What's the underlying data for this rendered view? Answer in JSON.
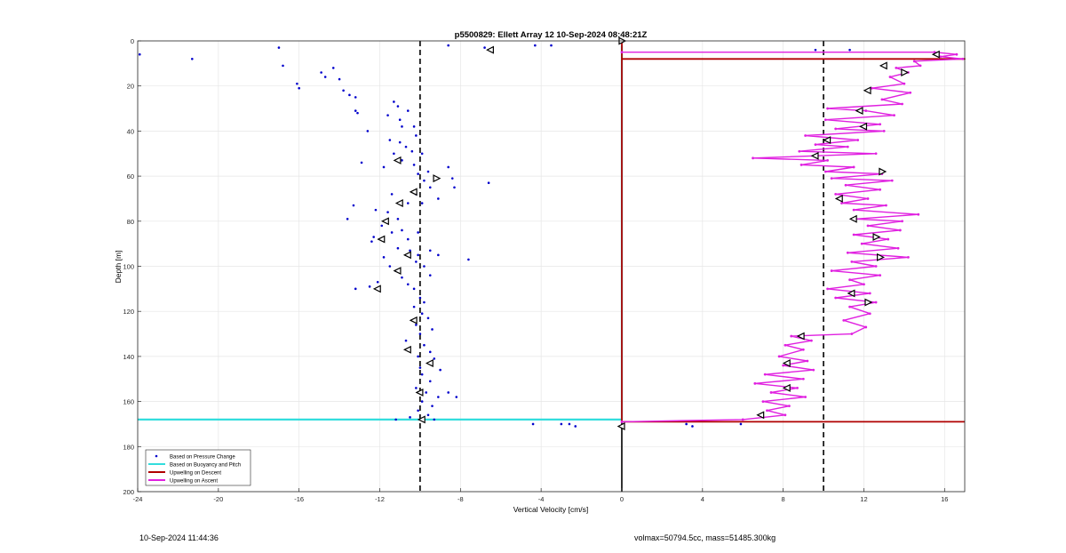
{
  "footer": {
    "timestamp": "10-Sep-2024 11:44:36",
    "params": "volmax=50794.5cc, mass=51485.300kg"
  },
  "colors": {
    "pressure": "#0000cc",
    "buoyancy": "#33dddd",
    "descent": "#b00000",
    "ascent": "#e020e0",
    "reference": "#000000"
  },
  "chart_data": {
    "type": "scatter",
    "title": "p5500829: Ellett Array 12 10-Sep-2024 08:48:21Z",
    "xlabel": "Vertical Velocity [cm/s]",
    "ylabel": "Depth [m]",
    "xlim": [
      -24,
      17
    ],
    "ylim": [
      0,
      200
    ],
    "y_reversed": true,
    "xticks": [
      -24,
      -20,
      -16,
      -12,
      -8,
      -4,
      0,
      4,
      8,
      12,
      16
    ],
    "yticks": [
      0,
      20,
      40,
      60,
      80,
      100,
      120,
      140,
      160,
      180,
      200
    ],
    "grid": true,
    "legend_position": "bottom-left",
    "reference_lines": [
      -10,
      10
    ],
    "series": [
      {
        "name": "Based on Pressure Change",
        "kind": "points",
        "points": [
          [
            -23.9,
            6
          ],
          [
            -21.3,
            8
          ],
          [
            -17.0,
            3
          ],
          [
            -16.8,
            11
          ],
          [
            -16.1,
            19
          ],
          [
            -16.0,
            21
          ],
          [
            -14.9,
            14
          ],
          [
            -14.7,
            16
          ],
          [
            -14.3,
            12
          ],
          [
            -14.0,
            17
          ],
          [
            -13.8,
            22
          ],
          [
            -13.5,
            24
          ],
          [
            -13.2,
            25
          ],
          [
            -13.2,
            31
          ],
          [
            -13.1,
            32
          ],
          [
            -11.6,
            33
          ],
          [
            -11.3,
            27
          ],
          [
            -11.1,
            29
          ],
          [
            -11.0,
            35
          ],
          [
            -10.9,
            38
          ],
          [
            -10.6,
            31
          ],
          [
            -10.3,
            38
          ],
          [
            -10.2,
            42
          ],
          [
            -12.6,
            40
          ],
          [
            -11.5,
            44
          ],
          [
            -11.0,
            45
          ],
          [
            -10.7,
            47
          ],
          [
            -11.3,
            50
          ],
          [
            -10.4,
            49
          ],
          [
            -9.9,
            50
          ],
          [
            -10.9,
            53
          ],
          [
            -10.3,
            55
          ],
          [
            -9.6,
            58
          ],
          [
            -11.8,
            56
          ],
          [
            -12.9,
            54
          ],
          [
            -10.1,
            59
          ],
          [
            -9.8,
            62
          ],
          [
            -9.5,
            65
          ],
          [
            -10.2,
            68
          ],
          [
            -11.4,
            68
          ],
          [
            -10.6,
            72
          ],
          [
            -9.9,
            72
          ],
          [
            -9.1,
            70
          ],
          [
            -8.4,
            61
          ],
          [
            -8.3,
            65
          ],
          [
            -6.6,
            63
          ],
          [
            -8.6,
            56
          ],
          [
            -12.2,
            75
          ],
          [
            -11.6,
            76
          ],
          [
            -11.1,
            79
          ],
          [
            -13.3,
            73
          ],
          [
            -13.6,
            79
          ],
          [
            -11.9,
            82
          ],
          [
            -11.4,
            85
          ],
          [
            -10.9,
            84
          ],
          [
            -10.6,
            88
          ],
          [
            -10.1,
            85
          ],
          [
            -12.3,
            87
          ],
          [
            -12.4,
            89
          ],
          [
            -11.1,
            92
          ],
          [
            -10.5,
            93
          ],
          [
            -10.1,
            95
          ],
          [
            -9.5,
            93
          ],
          [
            -9.1,
            95
          ],
          [
            -11.8,
            96
          ],
          [
            -11.5,
            100
          ],
          [
            -11.2,
            102
          ],
          [
            -10.9,
            105
          ],
          [
            -10.6,
            108
          ],
          [
            -10.3,
            110
          ],
          [
            -12.1,
            107
          ],
          [
            -12.5,
            109
          ],
          [
            -13.2,
            110
          ],
          [
            -10.2,
            98
          ],
          [
            -9.8,
            100
          ],
          [
            -9.5,
            104
          ],
          [
            -7.6,
            97
          ],
          [
            -10.0,
            114
          ],
          [
            -9.8,
            116
          ],
          [
            -10.3,
            118
          ],
          [
            -9.9,
            121
          ],
          [
            -9.6,
            123
          ],
          [
            -10.2,
            126
          ],
          [
            -10.0,
            130
          ],
          [
            -9.4,
            128
          ],
          [
            -10.7,
            133
          ],
          [
            -9.8,
            135
          ],
          [
            -9.5,
            138
          ],
          [
            -10.1,
            140
          ],
          [
            -9.3,
            141
          ],
          [
            -10.0,
            145
          ],
          [
            -9.0,
            146
          ],
          [
            -9.9,
            148
          ],
          [
            -9.5,
            151
          ],
          [
            -10.2,
            154
          ],
          [
            -9.7,
            156
          ],
          [
            -9.1,
            158
          ],
          [
            -9.9,
            160
          ],
          [
            -9.4,
            162
          ],
          [
            -8.6,
            156
          ],
          [
            -8.2,
            158
          ],
          [
            -10.1,
            164
          ],
          [
            -9.6,
            166
          ],
          [
            -9.3,
            168
          ],
          [
            -10.5,
            167
          ],
          [
            -11.2,
            168
          ],
          [
            -8.6,
            2
          ],
          [
            -6.8,
            3
          ],
          [
            -4.3,
            2
          ],
          [
            -3.5,
            2
          ],
          [
            -4.4,
            170
          ],
          [
            -3.0,
            170
          ],
          [
            -2.6,
            170
          ],
          [
            -2.3,
            171
          ],
          [
            9.6,
            4
          ],
          [
            11.3,
            4
          ],
          [
            3.2,
            170
          ],
          [
            3.5,
            171
          ],
          [
            5.9,
            170
          ]
        ]
      },
      {
        "name": "Based on Buoyancy and Pitch",
        "kind": "line",
        "points": [
          [
            0,
            2
          ],
          [
            0,
            168
          ],
          [
            -24,
            168
          ]
        ]
      },
      {
        "name": "Upwelling on Descent",
        "kind": "line",
        "points": [
          [
            0,
            0
          ],
          [
            0,
            5
          ],
          [
            0,
            8
          ],
          [
            17,
            8
          ],
          [
            0,
            8
          ],
          [
            0,
            169
          ],
          [
            17,
            169
          ]
        ]
      },
      {
        "name": "Upwelling on Ascent",
        "kind": "line",
        "points": [
          [
            0,
            5
          ],
          [
            15.5,
            5
          ],
          [
            16.6,
            6
          ],
          [
            15.8,
            7
          ],
          [
            16.9,
            8
          ],
          [
            14.5,
            9
          ],
          [
            14.8,
            11
          ],
          [
            13.6,
            12
          ],
          [
            14.2,
            14
          ],
          [
            13.3,
            16
          ],
          [
            14.0,
            19
          ],
          [
            12.4,
            21
          ],
          [
            14.3,
            23
          ],
          [
            12.9,
            26
          ],
          [
            13.9,
            28
          ],
          [
            10.2,
            30
          ],
          [
            12.1,
            31
          ],
          [
            13.5,
            33
          ],
          [
            10.1,
            35
          ],
          [
            12.8,
            37
          ],
          [
            10.6,
            39
          ],
          [
            13.0,
            40
          ],
          [
            9.1,
            42
          ],
          [
            11.7,
            44
          ],
          [
            9.6,
            46
          ],
          [
            11.2,
            47
          ],
          [
            8.8,
            49
          ],
          [
            12.6,
            50
          ],
          [
            6.5,
            52
          ],
          [
            10.2,
            53
          ],
          [
            8.9,
            55
          ],
          [
            11.5,
            56
          ],
          [
            10.1,
            58
          ],
          [
            12.9,
            59
          ],
          [
            10.4,
            61
          ],
          [
            13.4,
            62
          ],
          [
            11.1,
            64
          ],
          [
            12.8,
            66
          ],
          [
            10.6,
            68
          ],
          [
            12.2,
            70
          ],
          [
            10.9,
            72
          ],
          [
            13.1,
            73
          ],
          [
            11.5,
            75
          ],
          [
            14.7,
            77
          ],
          [
            11.6,
            79
          ],
          [
            13.9,
            80
          ],
          [
            12.2,
            82
          ],
          [
            13.8,
            84
          ],
          [
            11.5,
            86
          ],
          [
            13.2,
            88
          ],
          [
            11.9,
            90
          ],
          [
            13.7,
            92
          ],
          [
            11.2,
            94
          ],
          [
            14.2,
            96
          ],
          [
            11.4,
            98
          ],
          [
            12.6,
            100
          ],
          [
            10.4,
            102
          ],
          [
            12.8,
            104
          ],
          [
            11.3,
            106
          ],
          [
            12.0,
            108
          ],
          [
            10.2,
            110
          ],
          [
            12.3,
            112
          ],
          [
            10.6,
            114
          ],
          [
            12.6,
            116
          ],
          [
            11.3,
            118
          ],
          [
            12.3,
            121
          ],
          [
            11.0,
            124
          ],
          [
            12.1,
            127
          ],
          [
            11.4,
            130
          ],
          [
            8.4,
            131
          ],
          [
            9.4,
            133
          ],
          [
            8.1,
            135
          ],
          [
            9.0,
            137
          ],
          [
            7.8,
            140
          ],
          [
            9.2,
            142
          ],
          [
            8.0,
            144
          ],
          [
            9.5,
            146
          ],
          [
            7.1,
            148
          ],
          [
            9.0,
            150
          ],
          [
            6.6,
            152
          ],
          [
            8.7,
            154
          ],
          [
            7.4,
            156
          ],
          [
            9.1,
            158
          ],
          [
            7.0,
            160
          ],
          [
            8.3,
            162
          ],
          [
            7.2,
            164
          ],
          [
            8.1,
            166
          ],
          [
            6.0,
            168
          ],
          [
            0,
            169
          ]
        ]
      }
    ],
    "markers": {
      "shape": "triangle",
      "left_pointing": [
        [
          -6.5,
          4
        ],
        [
          -11.1,
          53
        ],
        [
          -10.3,
          67
        ],
        [
          -11.0,
          72
        ],
        [
          -11.7,
          80
        ],
        [
          -11.9,
          88
        ],
        [
          -10.6,
          95
        ],
        [
          -11.1,
          102
        ],
        [
          -12.1,
          110
        ],
        [
          -10.3,
          124
        ],
        [
          -10.6,
          137
        ],
        [
          -9.5,
          143
        ],
        [
          -10.0,
          156
        ],
        [
          -9.9,
          168
        ],
        [
          15.6,
          6
        ],
        [
          13.0,
          11
        ],
        [
          12.2,
          22
        ],
        [
          11.8,
          31
        ],
        [
          12.0,
          38
        ],
        [
          10.2,
          44
        ],
        [
          9.6,
          51
        ],
        [
          10.8,
          70
        ],
        [
          11.5,
          79
        ],
        [
          11.4,
          112
        ],
        [
          8.2,
          143
        ],
        [
          8.2,
          154
        ],
        [
          6.9,
          166
        ],
        [
          8.9,
          131
        ],
        [
          0,
          171
        ]
      ],
      "right_pointing": [
        [
          -9.2,
          61
        ],
        [
          0,
          0
        ],
        [
          14.0,
          14
        ],
        [
          12.9,
          58
        ],
        [
          12.6,
          87
        ],
        [
          12.8,
          96
        ],
        [
          12.2,
          116
        ]
      ]
    }
  }
}
